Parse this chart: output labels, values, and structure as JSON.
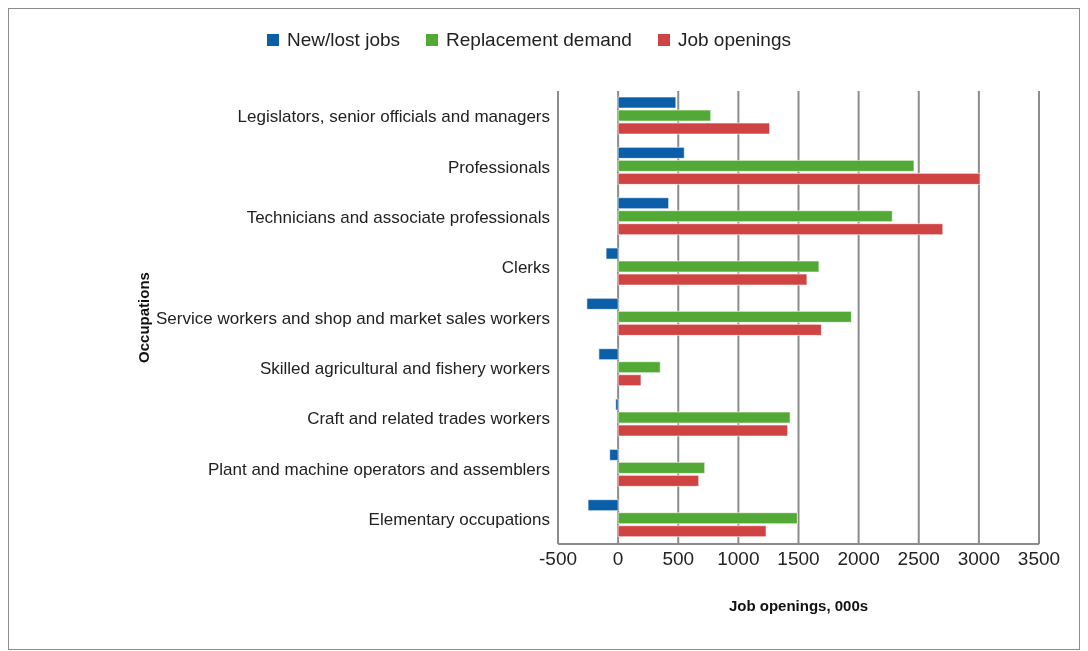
{
  "chart_data": {
    "type": "bar",
    "orientation": "horizontal",
    "xlabel": "Job openings, 000s",
    "ylabel": "Occupations",
    "categories": [
      "Legislators, senior officials and managers",
      "Professionals",
      "Technicians and associate professionals",
      "Clerks",
      "Service workers and shop and market sales workers",
      "Skilled agricultural and fishery workers",
      "Craft and related trades workers",
      "Plant and machine operators and assemblers",
      "Elementary occupations"
    ],
    "series": [
      {
        "name": "New/lost jobs",
        "color": "#0b5ea8",
        "values": [
          480,
          550,
          420,
          -100,
          -260,
          -160,
          -20,
          -70,
          -250
        ]
      },
      {
        "name": "Replacement demand",
        "color": "#53a935",
        "values": [
          770,
          2460,
          2280,
          1670,
          1940,
          350,
          1430,
          720,
          1490
        ]
      },
      {
        "name": "Job openings",
        "color": "#cf4342",
        "values": [
          1260,
          3010,
          2700,
          1570,
          1690,
          190,
          1410,
          670,
          1230
        ]
      }
    ],
    "xlim": [
      -500,
      3500
    ],
    "xticks": [
      -500,
      0,
      500,
      1000,
      1500,
      2000,
      2500,
      3000,
      3500
    ],
    "grid": "x",
    "legend": "top"
  }
}
